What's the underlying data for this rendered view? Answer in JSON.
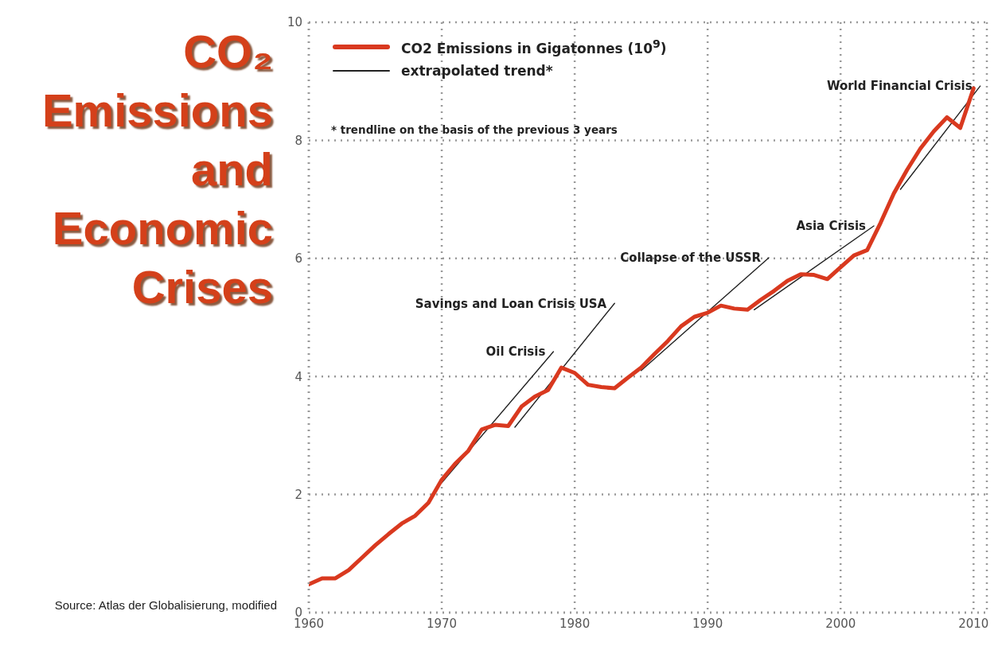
{
  "chart_data": {
    "type": "line",
    "title": "CO₂ Emissions and Economic Crises",
    "xlim": [
      1960,
      2011
    ],
    "xticks": [
      1960,
      1970,
      1980,
      1990,
      2000,
      2010
    ],
    "ylim": [
      0,
      10
    ],
    "yticks": [
      0,
      2,
      4,
      6,
      8,
      10
    ],
    "grid": true,
    "legend": "top left",
    "line_style": "solid",
    "series": [
      {
        "name": "CO2 Emissions in Gigatonnes (10$^{9}$)",
        "color": "#d9391f",
        "x": [
          1960,
          1961,
          1962,
          1963,
          1964,
          1965,
          1966,
          1967,
          1968,
          1969,
          1970,
          1971,
          1972,
          1973,
          1974,
          1975,
          1976,
          1977,
          1978,
          1979,
          1980,
          1981,
          1982,
          1983,
          1984,
          1985,
          1986,
          1987,
          1988,
          1989,
          1990,
          1991,
          1992,
          1993,
          1994,
          1995,
          1996,
          1997,
          1998,
          1999,
          2000,
          2001,
          2002,
          2003,
          2004,
          2005,
          2006,
          2007,
          2008,
          2009,
          2010
        ],
        "values": [
          0.48,
          0.58,
          0.58,
          0.72,
          0.93,
          1.14,
          1.33,
          1.51,
          1.64,
          1.86,
          2.25,
          2.52,
          2.74,
          3.1,
          3.18,
          3.16,
          3.49,
          3.66,
          3.77,
          4.15,
          4.06,
          3.86,
          3.82,
          3.8,
          3.98,
          4.15,
          4.38,
          4.6,
          4.85,
          5.01,
          5.08,
          5.2,
          5.15,
          5.13,
          5.3,
          5.45,
          5.62,
          5.73,
          5.72,
          5.65,
          5.85,
          6.05,
          6.14,
          6.6,
          7.1,
          7.5,
          7.86,
          8.15,
          8.39,
          8.21,
          8.88
        ]
      },
      {
        "name": "extrapolated trend*",
        "type": "line",
        "color": "#222222",
        "x": [
          1970,
          1978.4
        ],
        "values": [
          2.2,
          4.42
        ]
      },
      {
        "type": "line",
        "color": "#222222",
        "x": [
          1975.5,
          1983
        ],
        "values": [
          3.14,
          5.24
        ]
      },
      {
        "type": "line",
        "color": "#222222",
        "x": [
          1985,
          1994.6
        ],
        "values": [
          4.1,
          6.01
        ]
      },
      {
        "type": "line",
        "color": "#222222",
        "x": [
          1993.5,
          2002.5
        ],
        "values": [
          5.13,
          6.55
        ]
      },
      {
        "type": "line",
        "color": "#222222",
        "x": [
          2004.5,
          2010.5
        ],
        "values": [
          7.17,
          8.92
        ]
      }
    ],
    "annotations": [
      "* trendline on the basis of the previous 3 years",
      "Source: Atlas der Globalisierung, modified",
      {
        "text": "Oil Crisis",
        "x": 1978.4,
        "y": 4.42
      },
      {
        "text": "Savings and Loan Crisis USA",
        "x": 1983,
        "y": 5.24
      },
      {
        "text": "Collapse of the USSR",
        "x": 1994.6,
        "y": 6.01
      },
      {
        "text": "Asia Crisis",
        "x": 2002.5,
        "y": 6.55
      },
      {
        "text": "World Financial Crisis",
        "x": 2010.5,
        "y": 8.92
      }
    ]
  }
}
